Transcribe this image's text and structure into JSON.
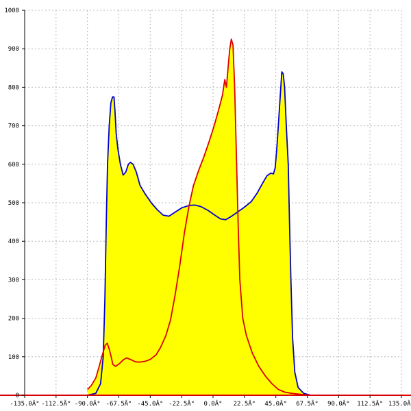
{
  "chart_data": {
    "type": "area",
    "title": "",
    "xlabel": "",
    "ylabel": "",
    "xlim": [
      -135,
      135
    ],
    "ylim": [
      0,
      1000
    ],
    "grid": true,
    "x_ticks": [
      {
        "value": -135,
        "label": "-135.0Â°"
      },
      {
        "value": -112.5,
        "label": "-112.5Â°"
      },
      {
        "value": -90,
        "label": "-90.0Â°"
      },
      {
        "value": -67.5,
        "label": "-67.5Â°"
      },
      {
        "value": -45,
        "label": "-45.0Â°"
      },
      {
        "value": -22.5,
        "label": "-22.5Â°"
      },
      {
        "value": 0,
        "label": "0.0Â°"
      },
      {
        "value": 22.5,
        "label": "22.5Â°"
      },
      {
        "value": 45,
        "label": "45.0Â°"
      },
      {
        "value": 67.5,
        "label": "67.5Â°"
      },
      {
        "value": 90,
        "label": "90.0Â°"
      },
      {
        "value": 112.5,
        "label": "112.5Â°"
      },
      {
        "value": 135,
        "label": "135.0Â°"
      }
    ],
    "y_ticks": [
      {
        "value": 0,
        "label": "0"
      },
      {
        "value": 100,
        "label": "100"
      },
      {
        "value": 200,
        "label": "200"
      },
      {
        "value": 300,
        "label": "300"
      },
      {
        "value": 400,
        "label": "400"
      },
      {
        "value": 500,
        "label": "500"
      },
      {
        "value": 600,
        "label": "600"
      },
      {
        "value": 700,
        "label": "700"
      },
      {
        "value": 800,
        "label": "800"
      },
      {
        "value": 900,
        "label": "900"
      },
      {
        "value": 1000,
        "label": "1000"
      }
    ],
    "fill_color": "#ffff00",
    "series": [
      {
        "color": "#0000cc",
        "points": [
          [
            -90.0,
            0
          ],
          [
            -84.0,
            5
          ],
          [
            -80.6,
            30
          ],
          [
            -78.7,
            100
          ],
          [
            -77.5,
            250
          ],
          [
            -76.5,
            450
          ],
          [
            -75.6,
            600
          ],
          [
            -74.4,
            700
          ],
          [
            -73.2,
            760
          ],
          [
            -72.0,
            775
          ],
          [
            -71.0,
            775
          ],
          [
            -70.3,
            740
          ],
          [
            -69.4,
            680
          ],
          [
            -68.2,
            640
          ],
          [
            -66.4,
            600
          ],
          [
            -64.4,
            572
          ],
          [
            -62.5,
            580
          ],
          [
            -60.7,
            600
          ],
          [
            -59.2,
            605
          ],
          [
            -57.3,
            600
          ],
          [
            -55.0,
            580
          ],
          [
            -52.3,
            545
          ],
          [
            -49.0,
            525
          ],
          [
            -44.3,
            500
          ],
          [
            -40.0,
            482
          ],
          [
            -35.8,
            468
          ],
          [
            -31.6,
            465
          ],
          [
            -27.4,
            475
          ],
          [
            -22.3,
            487
          ],
          [
            -17.1,
            493
          ],
          [
            -12.9,
            494
          ],
          [
            -8.6,
            490
          ],
          [
            -3.5,
            480
          ],
          [
            1.2,
            468
          ],
          [
            5.4,
            458
          ],
          [
            9.1,
            456
          ],
          [
            13.3,
            465
          ],
          [
            17.6,
            476
          ],
          [
            22.3,
            488
          ],
          [
            27.4,
            503
          ],
          [
            31.6,
            525
          ],
          [
            35.4,
            550
          ],
          [
            38.6,
            570
          ],
          [
            41.4,
            577
          ],
          [
            43.3,
            575
          ],
          [
            44.5,
            590
          ],
          [
            45.7,
            640
          ],
          [
            46.8,
            700
          ],
          [
            48.2,
            780
          ],
          [
            49.3,
            840
          ],
          [
            50.3,
            835
          ],
          [
            51.3,
            800
          ],
          [
            52.5,
            700
          ],
          [
            53.9,
            600
          ],
          [
            54.8,
            450
          ],
          [
            55.8,
            300
          ],
          [
            57.0,
            150
          ],
          [
            58.6,
            60
          ],
          [
            61.0,
            20
          ],
          [
            65.0,
            5
          ],
          [
            70.0,
            0
          ]
        ]
      },
      {
        "color": "#dd0000",
        "points": [
          [
            -90.0,
            15
          ],
          [
            -87.3,
            25
          ],
          [
            -84.0,
            45
          ],
          [
            -81.6,
            75
          ],
          [
            -79.7,
            100
          ],
          [
            -77.3,
            130
          ],
          [
            -75.8,
            135
          ],
          [
            -74.4,
            120
          ],
          [
            -73.0,
            100
          ],
          [
            -71.8,
            80
          ],
          [
            -69.9,
            75
          ],
          [
            -67.1,
            82
          ],
          [
            -64.3,
            92
          ],
          [
            -62.0,
            97
          ],
          [
            -59.2,
            93
          ],
          [
            -55.8,
            87
          ],
          [
            -52.5,
            86
          ],
          [
            -48.8,
            88
          ],
          [
            -45.0,
            93
          ],
          [
            -40.8,
            105
          ],
          [
            -37.5,
            125
          ],
          [
            -33.8,
            155
          ],
          [
            -30.5,
            195
          ],
          [
            -27.2,
            260
          ],
          [
            -23.9,
            335
          ],
          [
            -20.6,
            420
          ],
          [
            -17.3,
            490
          ],
          [
            -14.0,
            545
          ],
          [
            -10.2,
            585
          ],
          [
            -6.5,
            620
          ],
          [
            -2.7,
            660
          ],
          [
            0.8,
            700
          ],
          [
            3.9,
            740
          ],
          [
            6.8,
            780
          ],
          [
            8.4,
            820
          ],
          [
            9.6,
            800
          ],
          [
            11.0,
            860
          ],
          [
            12.0,
            900
          ],
          [
            13.1,
            925
          ],
          [
            14.3,
            910
          ],
          [
            15.5,
            800
          ],
          [
            16.9,
            600
          ],
          [
            18.1,
            430
          ],
          [
            19.2,
            300
          ],
          [
            21.3,
            200
          ],
          [
            23.9,
            155
          ],
          [
            28.1,
            110
          ],
          [
            32.8,
            75
          ],
          [
            37.5,
            50
          ],
          [
            42.2,
            30
          ],
          [
            46.8,
            15
          ],
          [
            51.5,
            8
          ],
          [
            56.2,
            5
          ],
          [
            61.0,
            3
          ],
          [
            70.0,
            0
          ]
        ]
      }
    ]
  }
}
